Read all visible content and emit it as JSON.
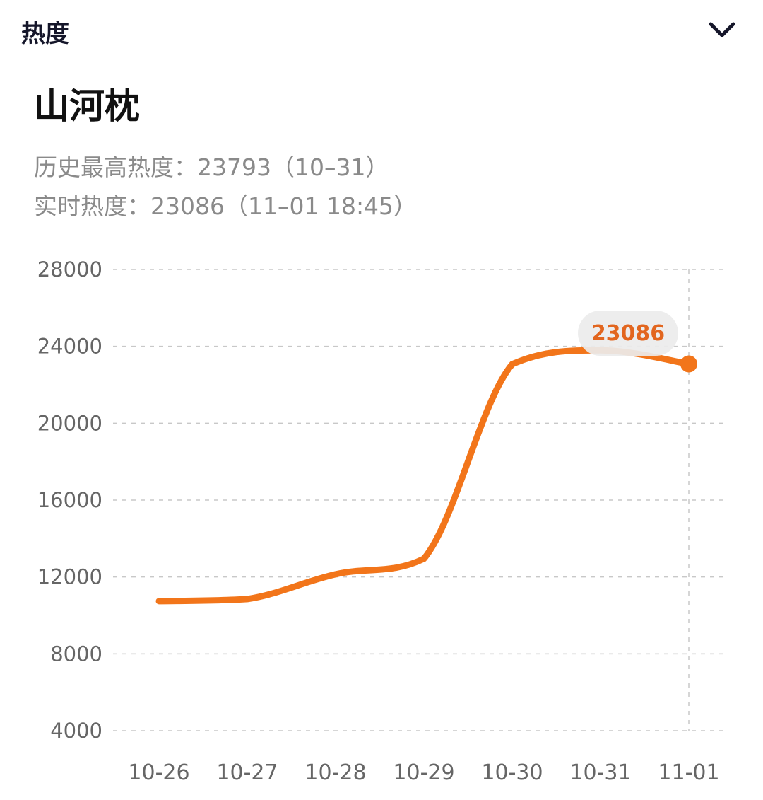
{
  "header": {
    "title": "热度",
    "collapse_icon": "chevron-down-icon"
  },
  "topic": {
    "title": "山河枕",
    "peak_label": "历史最高热度：23793（10–31）",
    "realtime_label": "实时热度：23086（11–01 18:45）"
  },
  "colors": {
    "line": "#f2751a",
    "badge_bg": "#ececec",
    "badge_text": "#e2661f",
    "grid": "#c8c8c8",
    "axis_text": "#666666"
  },
  "chart_data": {
    "type": "line",
    "title": "山河枕",
    "xlabel": "",
    "ylabel": "热度",
    "categories": [
      "10-26",
      "10-27",
      "10-28",
      "10-29",
      "10-30",
      "10-31",
      "11-01"
    ],
    "series": [
      {
        "name": "热度",
        "values": [
          10740,
          10850,
          12140,
          12950,
          23070,
          23793,
          23086
        ]
      }
    ],
    "yticks": [
      4000,
      8000,
      12000,
      16000,
      20000,
      24000,
      28000
    ],
    "ylim": [
      4000,
      28000
    ],
    "grid": true,
    "grid_style": "dashed horizontal",
    "annotations": [
      {
        "x": "11-01",
        "value": 23086,
        "label": "23086"
      }
    ],
    "legend": "none",
    "highlighted_category": "11-01"
  }
}
